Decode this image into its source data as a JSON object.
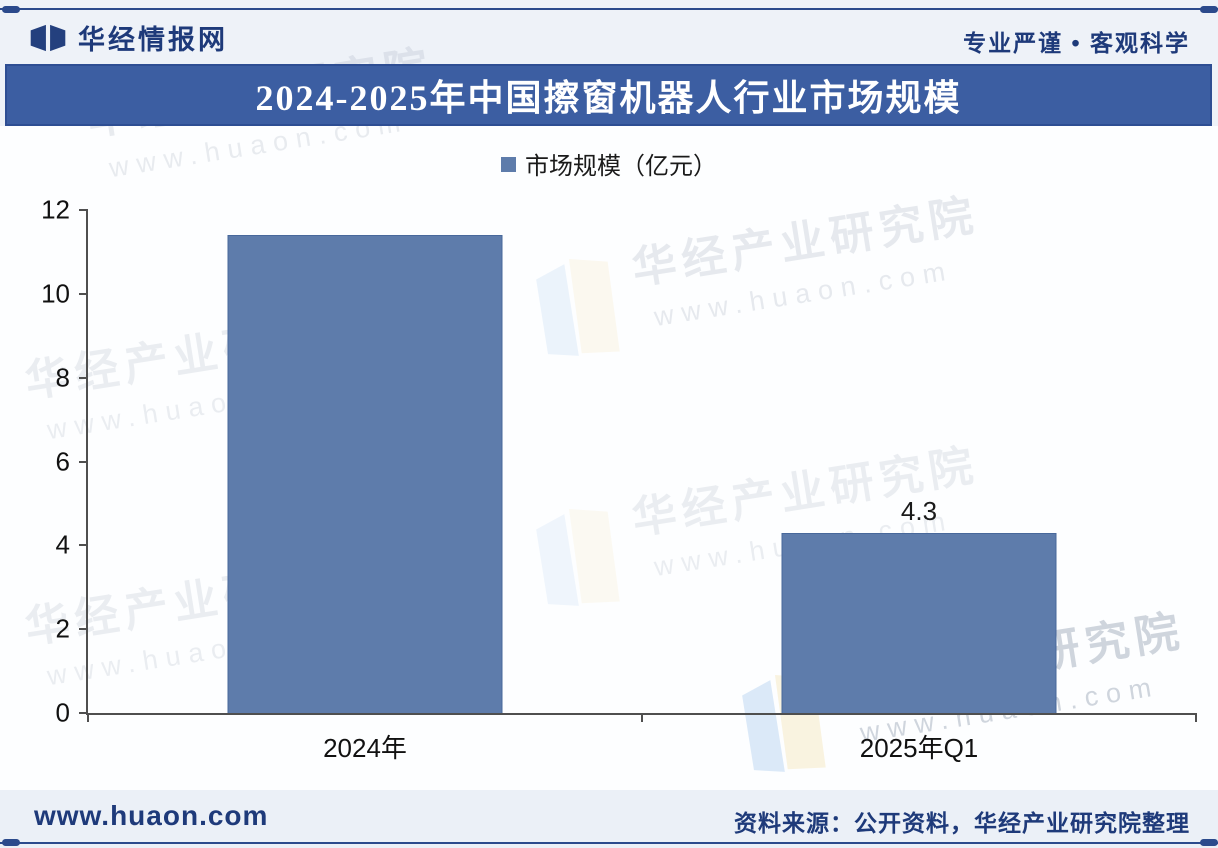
{
  "header": {
    "brand": "华经情报网",
    "tagline": "专业严谨 • 客观科学"
  },
  "title_bar": {
    "text": "2024-2025年中国擦窗机器人行业市场规模"
  },
  "watermark": {
    "org": "华经产业研究院",
    "url": "www.huaon.com"
  },
  "footer": {
    "site": "www.huaon.com",
    "source": "资料来源：公开资料，华经产业研究院整理"
  },
  "colors": {
    "title_bar": "#3C5EA2",
    "bar": "#5E7CAB",
    "bar_border": "#48689B",
    "navy_text": "#1E3A7A",
    "axis": "#4F4F4F"
  },
  "chart_data": {
    "type": "bar",
    "title": "2024-2025年中国擦窗机器人行业市场规模",
    "legend": [
      "市场规模（亿元）"
    ],
    "legend_position": "top",
    "categories": [
      "2024年",
      "2025年Q1"
    ],
    "values": [
      11.4,
      4.3
    ],
    "value_labels": [
      "",
      "4.3"
    ],
    "unit": "亿元",
    "xlabel": "",
    "ylabel": "",
    "ylim": [
      0,
      12
    ],
    "yticks": [
      0,
      2,
      4,
      6,
      8,
      10,
      12
    ],
    "grid": false,
    "bar_color": "#5E7CAB"
  }
}
